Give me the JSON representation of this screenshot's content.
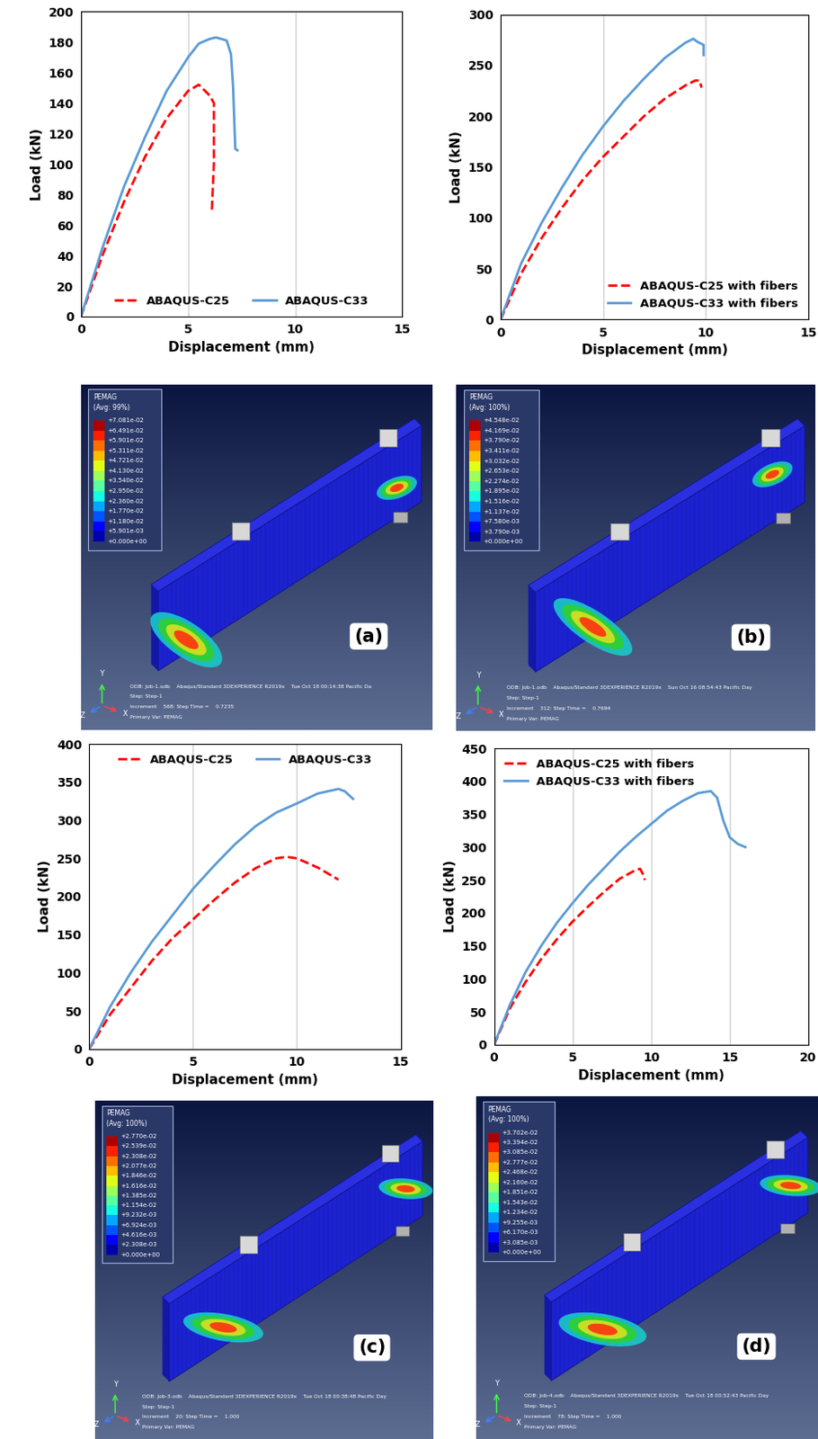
{
  "chart_data": [
    {
      "type": "line",
      "xlabel": "Displacement (mm)",
      "ylabel": "Load (kN)",
      "xlim": [
        0,
        15
      ],
      "xticks": [
        0,
        5,
        10,
        15
      ],
      "ylim": [
        0,
        200
      ],
      "yticks": [
        0,
        20,
        40,
        60,
        80,
        100,
        120,
        140,
        160,
        180,
        200
      ],
      "grid": "x",
      "legend": "lower center",
      "series": [
        {
          "name": "ABAQUS-C25",
          "color": "#ff0000",
          "line_style": "dashed",
          "x": [
            0,
            1,
            2,
            3,
            4,
            5,
            5.5,
            6,
            6.2,
            6.2,
            6.1
          ],
          "values": [
            0,
            40,
            75,
            105,
            130,
            148,
            152,
            145,
            140,
            100,
            68
          ]
        },
        {
          "name": "ABAQUS-C33",
          "color": "#5b9bd5",
          "line_style": "solid",
          "x": [
            0,
            1,
            2,
            3,
            4,
            5,
            5.5,
            6,
            6.3,
            6.8,
            7,
            7.1,
            7.2,
            7.3
          ],
          "values": [
            0,
            45,
            85,
            118,
            148,
            170,
            179,
            182,
            183,
            181,
            172,
            150,
            110,
            109
          ]
        }
      ]
    },
    {
      "type": "line",
      "xlabel": "Displacement (mm)",
      "ylabel": "Load (kN)",
      "xlim": [
        0,
        15
      ],
      "xticks": [
        0,
        5,
        10,
        15
      ],
      "ylim": [
        0,
        300
      ],
      "yticks": [
        0,
        50,
        100,
        150,
        200,
        250,
        300
      ],
      "grid": "x",
      "legend": "lower right",
      "series": [
        {
          "name": "ABAQUS-C25 with fibers",
          "color": "#ff0000",
          "line_style": "dashed",
          "x": [
            0,
            1,
            2,
            3,
            4,
            5,
            6,
            7,
            8,
            9,
            9.5,
            9.7,
            9.8
          ],
          "values": [
            0,
            45,
            80,
            110,
            137,
            160,
            180,
            200,
            217,
            230,
            235,
            235,
            228
          ]
        },
        {
          "name": "ABAQUS-C33 with fibers",
          "color": "#5b9bd5",
          "line_style": "solid",
          "x": [
            0,
            1,
            2,
            3,
            4,
            5,
            6,
            7,
            8,
            9,
            9.4,
            9.6,
            9.9,
            9.9
          ],
          "values": [
            0,
            55,
            95,
            130,
            162,
            190,
            215,
            237,
            257,
            272,
            276,
            273,
            270,
            260
          ]
        }
      ]
    },
    {
      "type": "line",
      "xlabel": "Displacement (mm)",
      "ylabel": "Load (kN)",
      "xlim": [
        0,
        15
      ],
      "xticks": [
        0,
        5,
        10,
        15
      ],
      "ylim": [
        0,
        400
      ],
      "yticks": [
        0,
        50,
        100,
        150,
        200,
        250,
        300,
        350,
        400
      ],
      "grid": "x",
      "legend": "upper center",
      "series": [
        {
          "name": "ABAQUS-C25",
          "color": "#ff0000",
          "line_style": "dashed",
          "x": [
            0,
            1,
            2,
            3,
            4,
            5,
            6,
            7,
            8,
            9,
            9.5,
            10,
            11,
            12
          ],
          "values": [
            0,
            45,
            80,
            115,
            145,
            170,
            195,
            218,
            237,
            250,
            252,
            250,
            238,
            222
          ]
        },
        {
          "name": "ABAQUS-C33",
          "color": "#5b9bd5",
          "line_style": "solid",
          "x": [
            0,
            1,
            2,
            3,
            4,
            5,
            6,
            7,
            8,
            9,
            10,
            11,
            12,
            12.3,
            12.7
          ],
          "values": [
            0,
            55,
            100,
            140,
            175,
            210,
            240,
            268,
            292,
            310,
            322,
            335,
            341,
            338,
            328
          ]
        }
      ]
    },
    {
      "type": "line",
      "xlabel": "Displacement (mm)",
      "ylabel": "Load (kN)",
      "xlim": [
        0,
        20
      ],
      "xticks": [
        0,
        5,
        10,
        15,
        20
      ],
      "ylim": [
        0,
        450
      ],
      "yticks": [
        0,
        50,
        100,
        150,
        200,
        250,
        300,
        350,
        400,
        450
      ],
      "grid": "x",
      "legend": "upper left",
      "series": [
        {
          "name": "ABAQUS-C25 with fibers",
          "color": "#ff0000",
          "line_style": "dashed",
          "x": [
            0,
            1,
            2,
            3,
            4,
            5,
            6,
            7,
            8,
            9,
            9.3,
            9.5,
            9.6
          ],
          "values": [
            0,
            55,
            95,
            130,
            160,
            187,
            210,
            232,
            252,
            265,
            267,
            258,
            250
          ]
        },
        {
          "name": "ABAQUS-C33 with fibers",
          "color": "#5b9bd5",
          "line_style": "solid",
          "x": [
            0,
            1,
            2,
            3,
            4,
            5,
            6,
            7,
            8,
            9,
            10,
            11,
            12,
            13,
            13.8,
            14.2,
            14.6,
            15,
            15.5,
            16
          ],
          "values": [
            0,
            60,
            110,
            150,
            185,
            215,
            243,
            268,
            293,
            315,
            335,
            355,
            370,
            382,
            385,
            375,
            340,
            315,
            305,
            300
          ]
        }
      ]
    }
  ],
  "contour_plots": [
    {
      "label": "(a)",
      "variable": "PEMAG",
      "average": "(Avg: 99%)",
      "colorbar": {
        "range": [
          0,
          0.07081
        ],
        "ticks": [
          {
            "value": 0.07081,
            "label": "+7.081e-02"
          },
          {
            "value": 0.06491,
            "label": "+6.491e-02"
          },
          {
            "value": 0.05901,
            "label": "+5.901e-02"
          },
          {
            "value": 0.05311,
            "label": "+5.311e-02"
          },
          {
            "value": 0.04721,
            "label": "+4.721e-02"
          },
          {
            "value": 0.0413,
            "label": "+4.130e-02"
          },
          {
            "value": 0.0354,
            "label": "+3.540e-02"
          },
          {
            "value": 0.0295,
            "label": "+2.950e-02"
          },
          {
            "value": 0.0236,
            "label": "+2.360e-02"
          },
          {
            "value": 0.0177,
            "label": "+1.770e-02"
          },
          {
            "value": 0.0118,
            "label": "+1.180e-02"
          },
          {
            "value": 0.005901,
            "label": "+5.901e-03"
          },
          {
            "value": 0,
            "label": "+0.000e+00"
          }
        ]
      },
      "triad": [
        "Y",
        "Z",
        "X"
      ],
      "footer": [
        "ODB: Job-1.odb    Abaqus/Standard 3DEXPERIENCE R2019x    Tue Oct 18 00:14:38 Pacific Da",
        "Step: Step-1",
        "Increment    568: Step Time =    0.7235",
        "Primary Var: PEMAG"
      ]
    },
    {
      "label": "(b)",
      "variable": "PEMAG",
      "average": "(Avg: 100%)",
      "colorbar": {
        "range": [
          0,
          0.04548
        ],
        "ticks": [
          {
            "value": 0.04548,
            "label": "+4.548e-02"
          },
          {
            "value": 0.04169,
            "label": "+4.169e-02"
          },
          {
            "value": 0.0379,
            "label": "+3.790e-02"
          },
          {
            "value": 0.03411,
            "label": "+3.411e-02"
          },
          {
            "value": 0.03032,
            "label": "+3.032e-02"
          },
          {
            "value": 0.02653,
            "label": "+2.653e-02"
          },
          {
            "value": 0.02274,
            "label": "+2.274e-02"
          },
          {
            "value": 0.01895,
            "label": "+1.895e-02"
          },
          {
            "value": 0.01516,
            "label": "+1.516e-02"
          },
          {
            "value": 0.01137,
            "label": "+1.137e-02"
          },
          {
            "value": 0.00758,
            "label": "+7.580e-03"
          },
          {
            "value": 0.00379,
            "label": "+3.790e-03"
          },
          {
            "value": 0,
            "label": "+0.000e+00"
          }
        ]
      },
      "triad": [
        "Y",
        "Z",
        "X"
      ],
      "footer": [
        "ODB: Job-1.odb    Abaqus/Standard 3DEXPERIENCE R2019x    Sun Oct 16 08:54:43 Pacific Day",
        "Step: Step-1",
        "Increment    312: Step Time =    0.7694",
        "Primary Var: PEMAG"
      ]
    },
    {
      "label": "(c)",
      "variable": "PEMAG",
      "average": "(Avg: 100%)",
      "colorbar": {
        "range": [
          0,
          0.0277
        ],
        "ticks": [
          {
            "value": 0.0277,
            "label": "+2.770e-02"
          },
          {
            "value": 0.02539,
            "label": "+2.539e-02"
          },
          {
            "value": 0.02308,
            "label": "+2.308e-02"
          },
          {
            "value": 0.02077,
            "label": "+2.077e-02"
          },
          {
            "value": 0.01846,
            "label": "+1.846e-02"
          },
          {
            "value": 0.01616,
            "label": "+1.616e-02"
          },
          {
            "value": 0.01385,
            "label": "+1.385e-02"
          },
          {
            "value": 0.01154,
            "label": "+1.154e-02"
          },
          {
            "value": 0.009232,
            "label": "+9.232e-03"
          },
          {
            "value": 0.006924,
            "label": "+6.924e-03"
          },
          {
            "value": 0.004616,
            "label": "+4.616e-03"
          },
          {
            "value": 0.002308,
            "label": "+2.308e-03"
          },
          {
            "value": 0,
            "label": "+0.000e+00"
          }
        ]
      },
      "triad": [
        "Y",
        "Z",
        "X"
      ],
      "footer": [
        "ODB: Job-3.odb    Abaqus/Standard 3DEXPERIENCE R2019x    Tue Oct 18 00:38:48 Pacific Day",
        "Step: Step-1",
        "Increment    20: Step Time =    1.000",
        "Primary Var: PEMAG"
      ]
    },
    {
      "label": "(d)",
      "variable": "PEMAG",
      "average": "(Avg: 100%)",
      "colorbar": {
        "range": [
          0,
          0.03702
        ],
        "ticks": [
          {
            "value": 0.03702,
            "label": "+3.702e-02"
          },
          {
            "value": 0.03394,
            "label": "+3.394e-02"
          },
          {
            "value": 0.03085,
            "label": "+3.085e-02"
          },
          {
            "value": 0.02777,
            "label": "+2.777e-02"
          },
          {
            "value": 0.02468,
            "label": "+2.468e-02"
          },
          {
            "value": 0.0216,
            "label": "+2.160e-02"
          },
          {
            "value": 0.01851,
            "label": "+1.851e-02"
          },
          {
            "value": 0.01543,
            "label": "+1.543e-02"
          },
          {
            "value": 0.01234,
            "label": "+1.234e-02"
          },
          {
            "value": 0.009255,
            "label": "+9.255e-03"
          },
          {
            "value": 0.00617,
            "label": "+6.170e-03"
          },
          {
            "value": 0.003085,
            "label": "+3.085e-03"
          },
          {
            "value": 0,
            "label": "+0.000e+00"
          }
        ]
      },
      "triad": [
        "Y",
        "Z",
        "X"
      ],
      "footer": [
        "ODB: Job-4.odb    Abaqus/Standard 3DEXPERIENCE R2019x    Tue Oct 18 00:52:43 Pacific Day",
        "Step: Step-1",
        "Increment    78: Step Time =    1.000",
        "Primary Var: PEMAG"
      ]
    }
  ]
}
